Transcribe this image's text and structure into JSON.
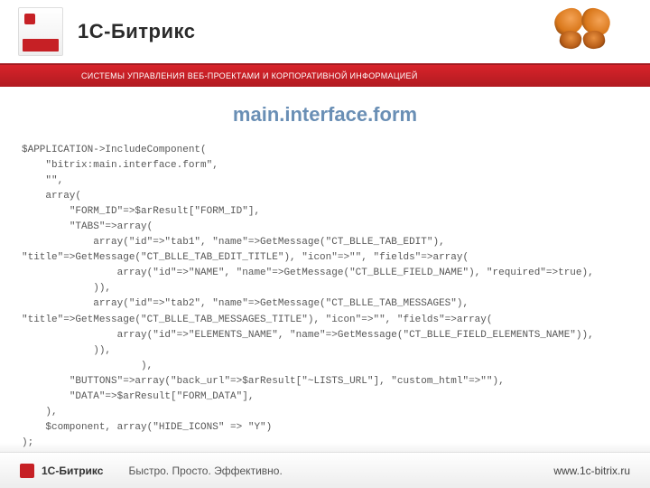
{
  "header": {
    "brand": "1С-Битрикс",
    "tagline": "СИСТЕМЫ УПРАВЛЕНИЯ ВЕБ-ПРОЕКТАМИ И КОРПОРАТИВНОЙ ИНФОРМАЦИЕЙ"
  },
  "page": {
    "title": "main.interface.form",
    "title_color": "#6a8fb5",
    "code_color": "#575757",
    "code_font_family": "Courier New, monospace",
    "code_font_size_pt": 8,
    "code": "$APPLICATION->IncludeComponent(\n    \"bitrix:main.interface.form\",\n    \"\",\n    array(\n        \"FORM_ID\"=>$arResult[\"FORM_ID\"],\n        \"TABS\"=>array(\n            array(\"id\"=>\"tab1\", \"name\"=>GetMessage(\"CT_BLLE_TAB_EDIT\"), \"title\"=>GetMessage(\"CT_BLLE_TAB_EDIT_TITLE\"), \"icon\"=>\"\", \"fields\"=>array(\n                array(\"id\"=>\"NAME\", \"name\"=>GetMessage(\"CT_BLLE_FIELD_NAME\"), \"required\"=>true),\n            )),\n            array(\"id\"=>\"tab2\", \"name\"=>GetMessage(\"CT_BLLE_TAB_MESSAGES\"), \"title\"=>GetMessage(\"CT_BLLE_TAB_MESSAGES_TITLE\"), \"icon\"=>\"\", \"fields\"=>array(\n                array(\"id\"=>\"ELEMENTS_NAME\", \"name\"=>GetMessage(\"CT_BLLE_FIELD_ELEMENTS_NAME\")),\n            )),\n                    ),\n        \"BUTTONS\"=>array(\"back_url\"=>$arResult[\"~LISTS_URL\"], \"custom_html\"=>\"\"),\n        \"DATA\"=>$arResult[\"FORM_DATA\"],\n    ),\n    $component, array(\"HIDE_ICONS\" => \"Y\")\n);"
  },
  "footer": {
    "brand": "1С-Битрикс",
    "tagline": "Быстро. Просто. Эффективно.",
    "url": "www.1c-bitrix.ru"
  },
  "colors": {
    "redbar_top": "#d8232a",
    "redbar_bottom": "#b11b21",
    "accent": "#c62025",
    "background": "#ffffff"
  }
}
